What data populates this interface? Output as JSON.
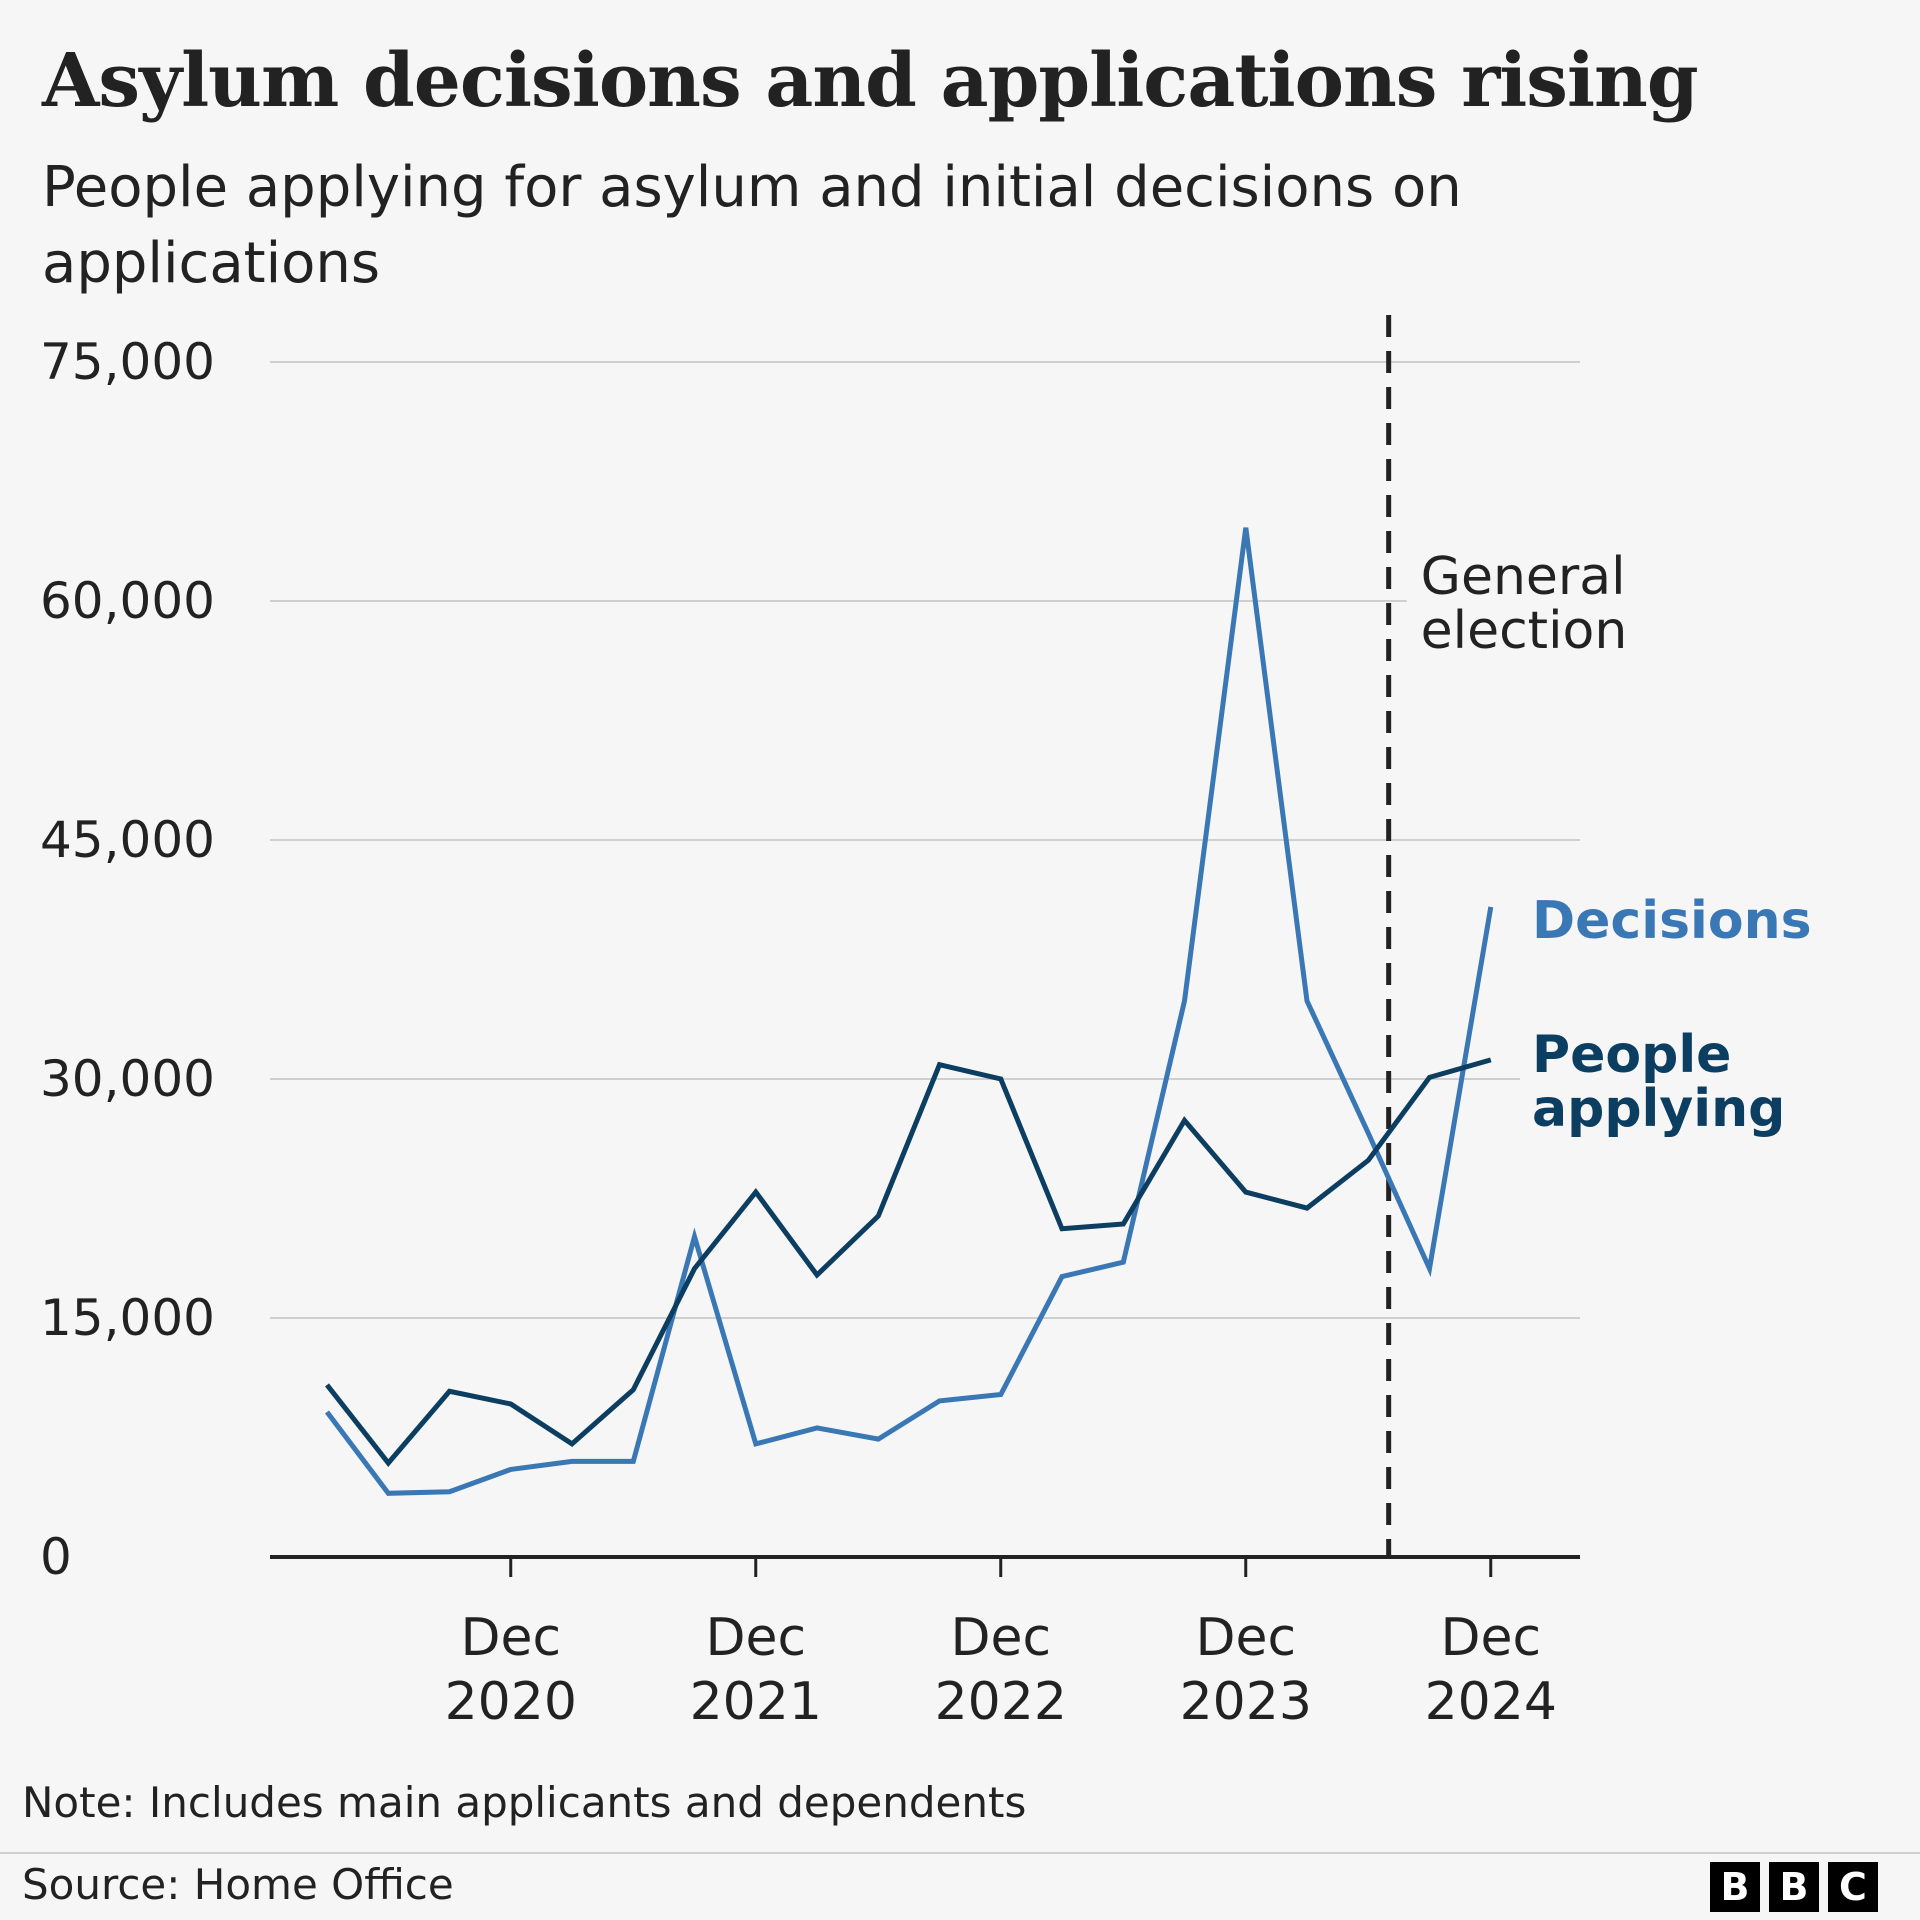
{
  "title": "Asylum decisions and applications rising",
  "subtitle": "People applying for asylum and initial decisions on applications",
  "note": "Note: Includes main applicants and dependents",
  "source": "Source: Home Office",
  "logo": [
    "B",
    "B",
    "C"
  ],
  "chart_data": {
    "type": "line",
    "title": "Asylum decisions and applications rising",
    "subtitle": "People applying for asylum and initial decisions on applications",
    "x": [
      "Mar 2020",
      "Jun 2020",
      "Sep 2020",
      "Dec 2020",
      "Mar 2021",
      "Jun 2021",
      "Sep 2021",
      "Dec 2021",
      "Mar 2022",
      "Jun 2022",
      "Sep 2022",
      "Dec 2022",
      "Mar 2023",
      "Jun 2023",
      "Sep 2023",
      "Dec 2023",
      "Mar 2024",
      "Jun 2024",
      "Sep 2024",
      "Dec 2024"
    ],
    "x_ticks": [
      "Dec 2020",
      "Dec 2021",
      "Dec 2022",
      "Dec 2023",
      "Dec 2024"
    ],
    "x_tick_lines": [
      [
        "Dec",
        "2020"
      ],
      [
        "Dec",
        "2021"
      ],
      [
        "Dec",
        "2022"
      ],
      [
        "Dec",
        "2023"
      ],
      [
        "Dec",
        "2024"
      ]
    ],
    "y_ticks": [
      0,
      15000,
      30000,
      45000,
      60000,
      75000
    ],
    "y_tick_labels": [
      "0",
      "15,000",
      "30,000",
      "45,000",
      "60,000",
      "75,000"
    ],
    "ylim": [
      0,
      75000
    ],
    "grid": true,
    "series": [
      {
        "name": "Decisions",
        "color": "#3a77b5",
        "values": [
          9100,
          4000,
          4100,
          5500,
          6000,
          6000,
          20100,
          7100,
          8100,
          7400,
          9800,
          10200,
          17600,
          18500,
          34900,
          64600,
          34900,
          26600,
          18100,
          40800
        ]
      },
      {
        "name": "People applying",
        "color": "#0c3e61",
        "values": [
          10800,
          5900,
          10400,
          9600,
          7100,
          10500,
          18100,
          22900,
          17700,
          21400,
          30900,
          30000,
          20600,
          20900,
          27400,
          22900,
          21900,
          24900,
          30100,
          31200
        ]
      }
    ],
    "legend": [
      {
        "lines": [
          "Decisions"
        ],
        "color": "#3a77b5"
      },
      {
        "lines": [
          "People",
          "applying"
        ],
        "color": "#0c3e61"
      }
    ],
    "annotation": {
      "lines": [
        "General",
        "election"
      ],
      "at": "Jul 2024",
      "style": "dashed vertical line"
    }
  }
}
